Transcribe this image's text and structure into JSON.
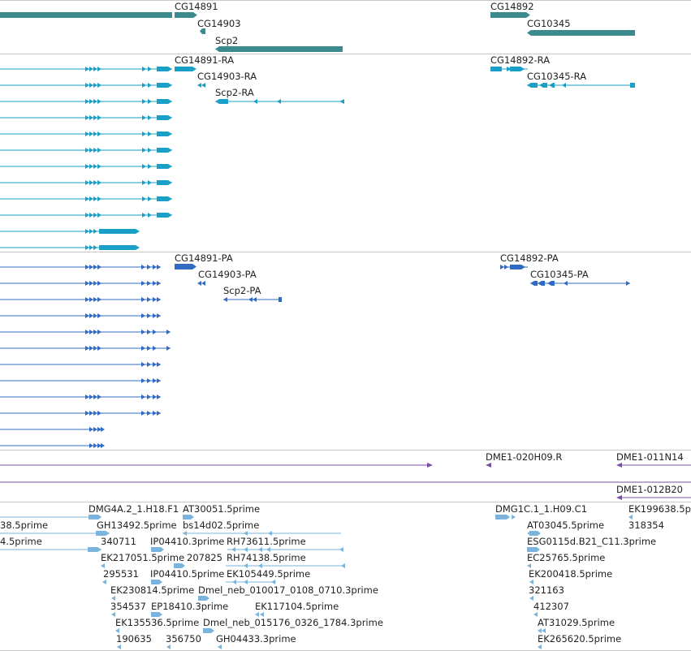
{
  "colors": {
    "gene": "#3a8a8e",
    "mrna": "#1aa0c6",
    "protein": "#2f6bc2",
    "bac": "#7a4fa3",
    "est": "#7ab3db",
    "divider": "#c8c8c8"
  },
  "tracks": [
    {
      "id": "genes",
      "features": [
        {
          "label": "CG14891",
          "strand": "+"
        },
        {
          "label": "CG14903",
          "strand": "-"
        },
        {
          "label": "Scp2",
          "strand": "-"
        },
        {
          "label": "CG14892",
          "strand": "+"
        },
        {
          "label": "CG10345",
          "strand": "-"
        }
      ]
    },
    {
      "id": "transcripts",
      "features": [
        {
          "label": "CG14891-RA",
          "strand": "+"
        },
        {
          "label": "CG14903-RA",
          "strand": "-"
        },
        {
          "label": "Scp2-RA",
          "strand": "-"
        },
        {
          "label": "CG14892-RA",
          "strand": "+"
        },
        {
          "label": "CG10345-RA",
          "strand": "-"
        }
      ]
    },
    {
      "id": "proteins",
      "features": [
        {
          "label": "CG14891-PA",
          "strand": "+"
        },
        {
          "label": "CG14903-PA",
          "strand": "-"
        },
        {
          "label": "Scp2-PA",
          "strand": "-"
        },
        {
          "label": "CG14892-PA",
          "strand": "+"
        },
        {
          "label": "CG10345-PA",
          "strand": "-"
        }
      ]
    },
    {
      "id": "bac-ends",
      "features": [
        {
          "label": "DME1-020H09.R",
          "strand": "-"
        },
        {
          "label": "DME1-011N14",
          "strand": "-"
        },
        {
          "label": "DME1-012B20",
          "strand": "-"
        }
      ]
    },
    {
      "id": "ests",
      "features": [
        {
          "label": "38.5prime"
        },
        {
          "label": "4.5prime"
        },
        {
          "label": "DMG4A.2_1.H18.F1"
        },
        {
          "label": "AT30051.5prime"
        },
        {
          "label": "GH13492.5prime"
        },
        {
          "label": "bs14d02.5prime"
        },
        {
          "label": "340711"
        },
        {
          "label": "IP04410.3prime"
        },
        {
          "label": "RH73611.5prime"
        },
        {
          "label": "EK217051.5prime"
        },
        {
          "label": "207825"
        },
        {
          "label": "RH74138.5prime"
        },
        {
          "label": "295531"
        },
        {
          "label": "IP04410.5prime"
        },
        {
          "label": "EK105449.5prime"
        },
        {
          "label": "EK230814.5prime"
        },
        {
          "label": "Dmel_neb_010017_0108_0710.3prime"
        },
        {
          "label": "354537"
        },
        {
          "label": "EP18410.3prime"
        },
        {
          "label": "EK117104.5prime"
        },
        {
          "label": "EK135536.5prime"
        },
        {
          "label": "Dmel_neb_015176_0326_1784.3prime"
        },
        {
          "label": "190635"
        },
        {
          "label": "356750"
        },
        {
          "label": "GH04433.3prime"
        },
        {
          "label": "DMG1C.1_1.H09.C1"
        },
        {
          "label": "EK199638.5p"
        },
        {
          "label": "AT03045.5prime"
        },
        {
          "label": "318354"
        },
        {
          "label": "ESG0115d.B21_C11.3prime"
        },
        {
          "label": "EC25765.5prime"
        },
        {
          "label": "EK200418.5prime"
        },
        {
          "label": "321163"
        },
        {
          "label": "412307"
        },
        {
          "label": "AT31029.5prime"
        },
        {
          "label": "EK265620.5prime"
        }
      ]
    }
  ]
}
